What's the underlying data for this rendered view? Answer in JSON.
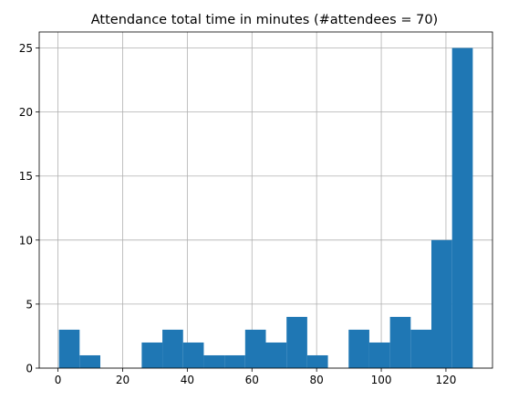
{
  "chart_data": {
    "type": "bar",
    "title": "Attendance total time in minutes (#attendees = 70)",
    "xlabel": "",
    "ylabel": "",
    "bins": [
      [
        0.3,
        6.7
      ],
      [
        6.7,
        13.1
      ],
      [
        13.1,
        19.5
      ],
      [
        19.5,
        25.9
      ],
      [
        25.9,
        32.3
      ],
      [
        32.3,
        38.7
      ],
      [
        38.7,
        45.1
      ],
      [
        45.1,
        51.5
      ],
      [
        51.5,
        57.9
      ],
      [
        57.9,
        64.3
      ],
      [
        64.3,
        70.7
      ],
      [
        70.7,
        77.1
      ],
      [
        77.1,
        83.5
      ],
      [
        83.5,
        89.9
      ],
      [
        89.9,
        96.3
      ],
      [
        96.3,
        102.7
      ],
      [
        102.7,
        109.1
      ],
      [
        109.1,
        115.5
      ],
      [
        115.5,
        121.9
      ],
      [
        121.9,
        128.3
      ]
    ],
    "values": [
      3,
      1,
      0,
      0,
      2,
      3,
      2,
      1,
      1,
      3,
      2,
      4,
      1,
      0,
      3,
      2,
      4,
      3,
      10,
      25
    ],
    "xlim": [
      -5.8,
      134.4
    ],
    "ylim": [
      0,
      26.25
    ],
    "xticks": [
      "0",
      "20",
      "40",
      "60",
      "80",
      "100",
      "120"
    ],
    "yticks": [
      "0",
      "5",
      "10",
      "15",
      "20",
      "25"
    ],
    "grid": true,
    "colors": {
      "bar": "#1f77b4",
      "grid": "#b0b0b0",
      "axis": "#000000"
    }
  }
}
